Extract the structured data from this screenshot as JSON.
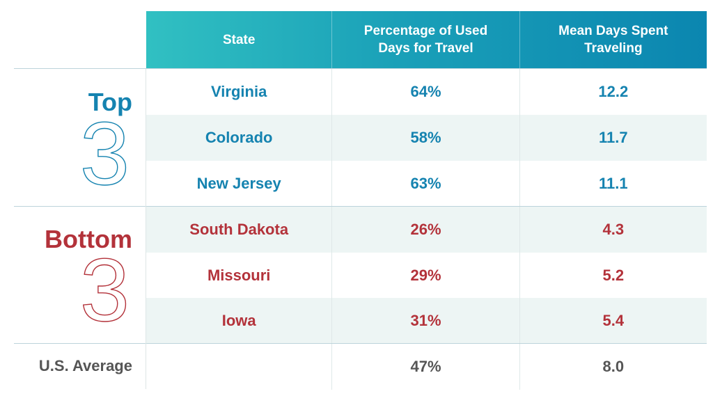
{
  "header": {
    "state": "State",
    "pct": "Percentage of Used\nDays for Travel",
    "mean": "Mean Days Spent\nTraveling"
  },
  "groups": {
    "top": {
      "word": "Top",
      "number": "3",
      "color": "#1583b0"
    },
    "bottom": {
      "word": "Bottom",
      "number": "3",
      "color": "#b3323a"
    }
  },
  "rows": [
    {
      "state": "Virginia",
      "pct": "64%",
      "mean": "12.2"
    },
    {
      "state": "Colorado",
      "pct": "58%",
      "mean": "11.7"
    },
    {
      "state": "New Jersey",
      "pct": "63%",
      "mean": "11.1"
    },
    {
      "state": "South Dakota",
      "pct": "26%",
      "mean": "4.3"
    },
    {
      "state": "Missouri",
      "pct": "29%",
      "mean": "5.2"
    },
    {
      "state": "Iowa",
      "pct": "31%",
      "mean": "5.4"
    }
  ],
  "average": {
    "label": "U.S. Average",
    "pct": "47%",
    "mean": "8.0"
  },
  "colors": {
    "header_start": "#31c0c2",
    "header_end": "#0b86b0",
    "top_text": "#1583b0",
    "bottom_text": "#b3323a",
    "average_text": "#555555",
    "row_shade": "#edf5f4"
  }
}
